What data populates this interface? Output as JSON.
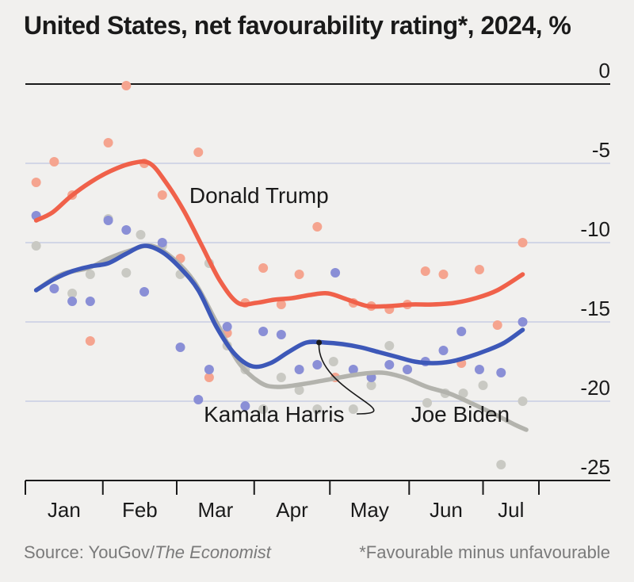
{
  "chart_data": {
    "type": "line",
    "title": "United States, net favourability rating*, 2024, %",
    "source_label": "Source: YouGov/",
    "source_publication": "The Economist",
    "footnote": "*Favourable minus unfavourable",
    "x_unit": "week of 2024 (0 = early January)",
    "xlim": [
      0,
      28.5
    ],
    "ylim": [
      -25,
      0
    ],
    "y_ticks": [
      0,
      -5,
      -10,
      -15,
      -20,
      -25
    ],
    "y_tick_labels": [
      "0",
      "-5",
      "-10",
      "-15",
      "-20",
      "-25"
    ],
    "months": [
      {
        "label": "Jan",
        "start": 0,
        "end": 4.3
      },
      {
        "label": "Feb",
        "start": 4.3,
        "end": 8.4
      },
      {
        "label": "Mar",
        "start": 8.4,
        "end": 12.7
      },
      {
        "label": "Apr",
        "start": 12.7,
        "end": 16.9
      },
      {
        "label": "May",
        "start": 16.9,
        "end": 21.3
      },
      {
        "label": "Jun",
        "start": 21.3,
        "end": 25.4
      },
      {
        "label": "Jul",
        "start": 25.4,
        "end": 28.5
      }
    ],
    "grid": true,
    "series": [
      {
        "name": "Joe Biden",
        "line_color": "#b3b3ad",
        "dot_color": "#c9c9c3",
        "line_x": [
          0.6,
          2,
          3.5,
          4.6,
          5.8,
          7,
          8.2,
          9.4,
          10.6,
          11.8,
          13,
          14,
          15.5,
          17,
          18.5,
          19.8,
          21,
          22.3,
          23.5,
          24.7,
          26,
          27.2,
          27.8
        ],
        "line_y": [
          -13,
          -12,
          -11.6,
          -11,
          -10.5,
          -10.2,
          -11,
          -12.5,
          -15,
          -17.5,
          -18.8,
          -19.1,
          -18.9,
          -18.6,
          -18.3,
          -18.2,
          -18.5,
          -19.1,
          -19.5,
          -20.1,
          -20.8,
          -21.5,
          -21.8
        ],
        "points_x": [
          0.6,
          2.6,
          3.6,
          4.6,
          5.6,
          6.4,
          7.6,
          8.6,
          10.2,
          11.2,
          12.2,
          13.2,
          14.2,
          15.2,
          16.2,
          17.1,
          18.2,
          19.2,
          20.2,
          21.2,
          22.3,
          23.3,
          24.3,
          25.4,
          26.4,
          27.6
        ],
        "points_y": [
          -10.2,
          -13.2,
          -12,
          -8.5,
          -11.9,
          -9.5,
          -10.2,
          -12,
          -11.3,
          -16.5,
          -18,
          -20.5,
          -18.5,
          -19.3,
          -20.5,
          -17.5,
          -20.5,
          -19,
          -16.5,
          -18,
          -20.1,
          -19.5,
          -19.5,
          -19,
          -24,
          -20
        ]
      },
      {
        "name": "Donald Trump",
        "line_color": "#f0614a",
        "dot_color": "#f5a48f",
        "line_x": [
          0.6,
          1.5,
          2.5,
          3.6,
          4.7,
          5.9,
          6.9,
          7.8,
          8.8,
          9.8,
          10.8,
          11.8,
          12.8,
          13.8,
          14.8,
          15.8,
          16.8,
          17.9,
          19,
          20.2,
          21.4,
          22.6,
          23.8,
          25,
          26.2,
          27.6
        ],
        "line_y": [
          -8.6,
          -8.1,
          -7.1,
          -6.2,
          -5.5,
          -5.0,
          -5.0,
          -6.2,
          -8.0,
          -10.2,
          -12.4,
          -13.8,
          -13.8,
          -13.6,
          -13.5,
          -13.3,
          -13.2,
          -13.6,
          -14.0,
          -14.0,
          -13.9,
          -13.9,
          -13.8,
          -13.5,
          -13.0,
          -12.0
        ],
        "points_x": [
          0.6,
          1.6,
          2.6,
          3.6,
          4.6,
          5.6,
          6.6,
          7.6,
          8.6,
          9.6,
          10.2,
          11.2,
          12.2,
          13.2,
          14.2,
          15.2,
          16.2,
          17.2,
          18.2,
          19.2,
          20.2,
          21.2,
          22.2,
          23.2,
          24.2,
          25.2,
          26.2,
          27.6
        ],
        "points_y": [
          -6.2,
          -4.9,
          -7,
          -16.2,
          -3.7,
          -0.1,
          -5,
          -7,
          -11,
          -4.3,
          -18.5,
          -15.7,
          -13.8,
          -11.6,
          -13.9,
          -12,
          -9,
          -18.5,
          -13.8,
          -14,
          -14.2,
          -13.9,
          -11.8,
          -12,
          -17.6,
          -11.7,
          -15.2,
          -10
        ]
      },
      {
        "name": "Kamala Harris",
        "line_color": "#3d58b8",
        "dot_color": "#8a8fd6",
        "line_x": [
          0.6,
          1.6,
          2.6,
          3.6,
          4.6,
          5.6,
          6.6,
          7.6,
          8.6,
          9.6,
          10.6,
          11.6,
          12.6,
          13.6,
          14.6,
          15.6,
          16.6,
          17.6,
          18.6,
          19.6,
          20.6,
          21.6,
          22.6,
          23.6,
          24.6,
          25.6,
          26.6,
          27.6
        ],
        "line_y": [
          -13,
          -12.3,
          -11.8,
          -11.5,
          -11.3,
          -10.7,
          -10.2,
          -10.6,
          -11.6,
          -13,
          -15.3,
          -17,
          -17.8,
          -17.6,
          -16.9,
          -16.3,
          -16.3,
          -16.4,
          -16.6,
          -16.9,
          -17.2,
          -17.5,
          -17.6,
          -17.5,
          -17.2,
          -16.8,
          -16.3,
          -15.5
        ],
        "points_x": [
          0.6,
          1.6,
          2.6,
          3.6,
          4.6,
          5.6,
          6.6,
          7.6,
          8.6,
          9.6,
          10.2,
          11.2,
          12.2,
          13.2,
          14.2,
          15.2,
          16.2,
          17.2,
          18.2,
          19.2,
          20.2,
          21.2,
          22.2,
          23.2,
          24.2,
          25.2,
          26.4,
          27.6
        ],
        "points_y": [
          -8.3,
          -12.9,
          -13.7,
          -13.7,
          -8.6,
          -9.2,
          -13.1,
          -10,
          -16.6,
          -19.9,
          -18,
          -15.3,
          -20.3,
          -15.6,
          -15.8,
          -18.0,
          -17.7,
          -11.9,
          -18.0,
          -18.5,
          -17.7,
          -18,
          -17.5,
          -16.8,
          -15.6,
          -18,
          -18.2,
          -15.0
        ]
      }
    ],
    "annotations": [
      {
        "text": "Donald Trump",
        "x": 9.1,
        "y": -7.5
      },
      {
        "text": "Kamala Harris",
        "x": 9.9,
        "y": -21.3,
        "pointer_to": [
          16.3,
          -16.3
        ]
      },
      {
        "text": "Joe Biden",
        "x": 21.4,
        "y": -21.3
      }
    ]
  }
}
